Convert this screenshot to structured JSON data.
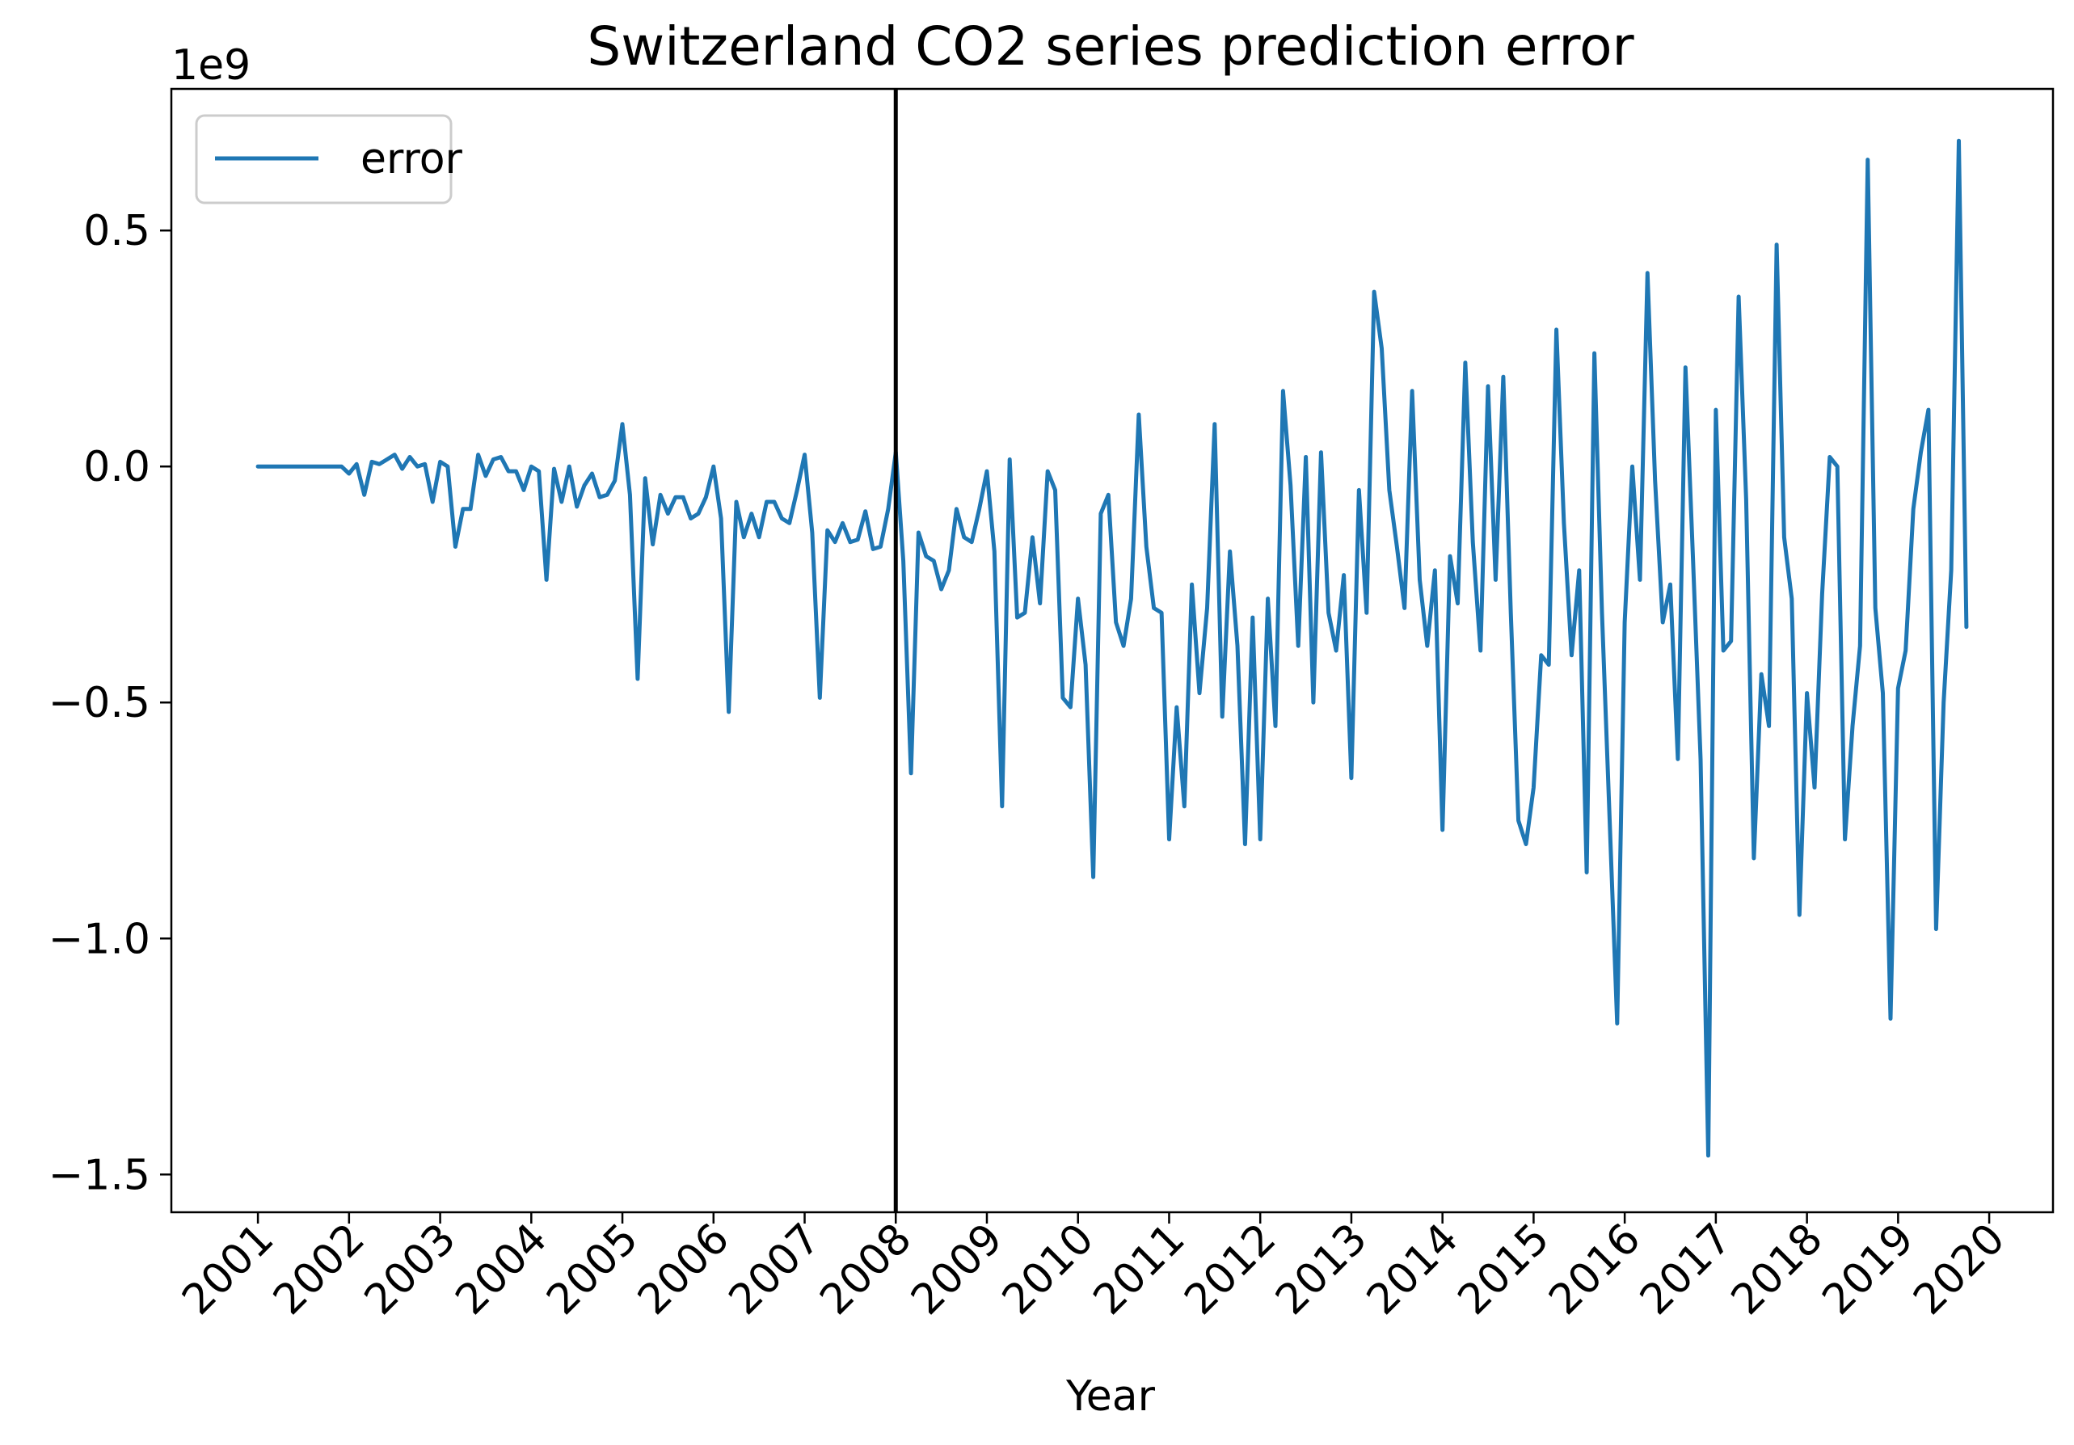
{
  "chart_data": {
    "type": "line",
    "title": "Switzerland  CO2 series prediction error",
    "xlabel": "Year",
    "ylabel": "",
    "y_offset_text": "1e9",
    "xlim": [
      2000.05,
      2020.7
    ],
    "ylim": [
      -1.58,
      0.8
    ],
    "yticks": [
      -1.5,
      -1.0,
      -0.5,
      0.0,
      0.5
    ],
    "ytick_labels": [
      "−1.5",
      "−1.0",
      "−0.5",
      "0.0",
      "0.5"
    ],
    "xticks": [
      2001,
      2002,
      2003,
      2004,
      2005,
      2006,
      2007,
      2008,
      2009,
      2010,
      2011,
      2012,
      2013,
      2014,
      2015,
      2016,
      2017,
      2018,
      2019,
      2020
    ],
    "xtick_labels": [
      "2001",
      "2002",
      "2003",
      "2004",
      "2005",
      "2006",
      "2007",
      "2008",
      "2009",
      "2010",
      "2011",
      "2012",
      "2013",
      "2014",
      "2015",
      "2016",
      "2017",
      "2018",
      "2019",
      "2020"
    ],
    "vline_x": 2008.0,
    "grid": false,
    "legend": {
      "position": "top-left",
      "entries": [
        "error"
      ]
    },
    "series": [
      {
        "name": "error",
        "color": "#1f77b4",
        "x": [
          2001.0,
          2001.083,
          2001.167,
          2001.25,
          2001.333,
          2001.417,
          2001.5,
          2001.583,
          2001.667,
          2001.75,
          2001.833,
          2001.917,
          2002.0,
          2002.083,
          2002.167,
          2002.25,
          2002.333,
          2002.417,
          2002.5,
          2002.583,
          2002.667,
          2002.75,
          2002.833,
          2002.917,
          2003.0,
          2003.083,
          2003.167,
          2003.25,
          2003.333,
          2003.417,
          2003.5,
          2003.583,
          2003.667,
          2003.75,
          2003.833,
          2003.917,
          2004.0,
          2004.083,
          2004.167,
          2004.25,
          2004.333,
          2004.417,
          2004.5,
          2004.583,
          2004.667,
          2004.75,
          2004.833,
          2004.917,
          2005.0,
          2005.083,
          2005.167,
          2005.25,
          2005.333,
          2005.417,
          2005.5,
          2005.583,
          2005.667,
          2005.75,
          2005.833,
          2005.917,
          2006.0,
          2006.083,
          2006.167,
          2006.25,
          2006.333,
          2006.417,
          2006.5,
          2006.583,
          2006.667,
          2006.75,
          2006.833,
          2006.917,
          2007.0,
          2007.083,
          2007.167,
          2007.25,
          2007.333,
          2007.417,
          2007.5,
          2007.583,
          2007.667,
          2007.75,
          2007.833,
          2007.917,
          2008.0,
          2008.083,
          2008.167,
          2008.25,
          2008.333,
          2008.417,
          2008.5,
          2008.583,
          2008.667,
          2008.75,
          2008.833,
          2008.917,
          2009.0,
          2009.083,
          2009.167,
          2009.25,
          2009.333,
          2009.417,
          2009.5,
          2009.583,
          2009.667,
          2009.75,
          2009.833,
          2009.917,
          2010.0,
          2010.083,
          2010.167,
          2010.25,
          2010.333,
          2010.417,
          2010.5,
          2010.583,
          2010.667,
          2010.75,
          2010.833,
          2010.917,
          2011.0,
          2011.083,
          2011.167,
          2011.25,
          2011.333,
          2011.417,
          2011.5,
          2011.583,
          2011.667,
          2011.75,
          2011.833,
          2011.917,
          2012.0,
          2012.083,
          2012.167,
          2012.25,
          2012.333,
          2012.417,
          2012.5,
          2012.583,
          2012.667,
          2012.75,
          2012.833,
          2012.917,
          2013.0,
          2013.083,
          2013.167,
          2013.25,
          2013.333,
          2013.417,
          2013.5,
          2013.583,
          2013.667,
          2013.75,
          2013.833,
          2013.917,
          2014.0,
          2014.083,
          2014.167,
          2014.25,
          2014.333,
          2014.417,
          2014.5,
          2014.583,
          2014.667,
          2014.75,
          2014.833,
          2014.917,
          2015.0,
          2015.083,
          2015.167,
          2015.25,
          2015.333,
          2015.417,
          2015.5,
          2015.583,
          2015.667,
          2015.75,
          2015.833,
          2015.917,
          2016.0,
          2016.083,
          2016.167,
          2016.25,
          2016.333,
          2016.417,
          2016.5,
          2016.583,
          2016.667,
          2016.75,
          2016.833,
          2016.917,
          2017.0,
          2017.083,
          2017.167,
          2017.25,
          2017.333,
          2017.417,
          2017.5,
          2017.583,
          2017.667,
          2017.75,
          2017.833,
          2017.917,
          2018.0,
          2018.083,
          2018.167,
          2018.25,
          2018.333,
          2018.417,
          2018.5,
          2018.583,
          2018.667,
          2018.75,
          2018.833,
          2018.917,
          2019.0,
          2019.083,
          2019.167,
          2019.25,
          2019.333,
          2019.417,
          2019.5,
          2019.583,
          2019.667,
          2019.75
        ],
        "y": [
          0.0,
          0.0,
          0.0,
          0.0,
          0.0,
          0.0,
          0.0,
          0.0,
          0.0,
          0.0,
          0.0,
          0.0,
          -0.015,
          0.005,
          -0.06,
          0.01,
          0.005,
          0.015,
          0.025,
          -0.005,
          0.02,
          0.0,
          0.005,
          -0.075,
          0.01,
          0.0,
          -0.17,
          -0.09,
          -0.09,
          0.025,
          -0.02,
          0.015,
          0.02,
          -0.01,
          -0.01,
          -0.05,
          0.0,
          -0.01,
          -0.24,
          -0.005,
          -0.075,
          0.0,
          -0.085,
          -0.04,
          -0.015,
          -0.065,
          -0.06,
          -0.03,
          0.09,
          -0.06,
          -0.45,
          -0.025,
          -0.165,
          -0.06,
          -0.1,
          -0.065,
          -0.065,
          -0.11,
          -0.1,
          -0.065,
          0.0,
          -0.11,
          -0.52,
          -0.075,
          -0.15,
          -0.1,
          -0.15,
          -0.075,
          -0.075,
          -0.11,
          -0.12,
          -0.05,
          0.025,
          -0.14,
          -0.49,
          -0.135,
          -0.16,
          -0.12,
          -0.16,
          -0.155,
          -0.095,
          -0.175,
          -0.17,
          -0.09,
          0.03,
          -0.2,
          -0.65,
          -0.14,
          -0.19,
          -0.2,
          -0.26,
          -0.22,
          -0.09,
          -0.15,
          -0.16,
          -0.09,
          -0.01,
          -0.18,
          -0.72,
          0.015,
          -0.32,
          -0.31,
          -0.15,
          -0.29,
          -0.01,
          -0.05,
          -0.49,
          -0.51,
          -0.28,
          -0.42,
          -0.87,
          -0.1,
          -0.06,
          -0.33,
          -0.38,
          -0.28,
          0.11,
          -0.17,
          -0.3,
          -0.31,
          -0.79,
          -0.51,
          -0.72,
          -0.25,
          -0.48,
          -0.3,
          0.09,
          -0.53,
          -0.18,
          -0.38,
          -0.8,
          -0.32,
          -0.79,
          -0.28,
          -0.55,
          0.16,
          -0.04,
          -0.38,
          0.02,
          -0.5,
          0.03,
          -0.31,
          -0.39,
          -0.23,
          -0.66,
          -0.05,
          -0.31,
          0.37,
          0.25,
          -0.05,
          -0.17,
          -0.3,
          0.16,
          -0.24,
          -0.38,
          -0.22,
          -0.77,
          -0.19,
          -0.29,
          0.22,
          -0.16,
          -0.39,
          0.17,
          -0.24,
          0.19,
          -0.31,
          -0.75,
          -0.8,
          -0.68,
          -0.4,
          -0.42,
          0.29,
          -0.12,
          -0.4,
          -0.22,
          -0.86,
          0.24,
          -0.31,
          -0.74,
          -1.18,
          -0.33,
          0.0,
          -0.24,
          0.41,
          -0.03,
          -0.33,
          -0.25,
          -0.62,
          0.21,
          -0.2,
          -0.62,
          -1.46,
          0.12,
          -0.39,
          -0.37,
          0.36,
          -0.07,
          -0.83,
          -0.44,
          -0.55,
          0.47,
          -0.15,
          -0.28,
          -0.95,
          -0.48,
          -0.68,
          -0.27,
          0.02,
          0.0,
          -0.79,
          -0.55,
          -0.38,
          0.65,
          -0.3,
          -0.48,
          -1.17,
          -0.47,
          -0.39,
          -0.09,
          0.03,
          0.12,
          -0.98,
          -0.5,
          -0.22,
          0.69,
          -0.34
        ]
      }
    ]
  }
}
